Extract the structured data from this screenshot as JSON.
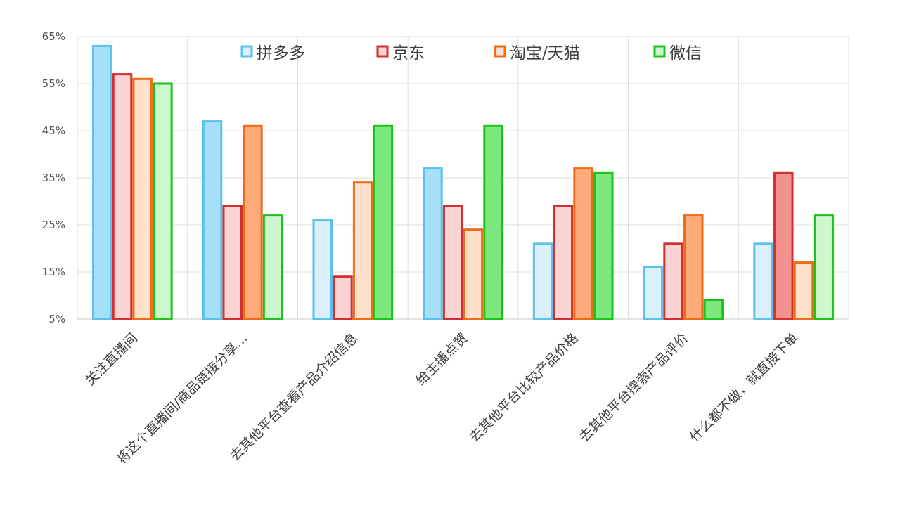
{
  "chart_data": {
    "type": "bar",
    "categories": [
      "关注直播间",
      "将这个直播间/商品链接分享…",
      "去其他平台查看产品介绍信息",
      "给主播点赞",
      "去其他平台比较产品价格",
      "去其他平台搜索产品评价",
      "什么都不做，就直接下单"
    ],
    "series": [
      {
        "name": "拼多多",
        "color": "#5bc0eb",
        "values": [
          63,
          47,
          26,
          37,
          21,
          16,
          21
        ]
      },
      {
        "name": "京东",
        "color": "#d32f2f",
        "values": [
          57,
          29,
          14,
          29,
          29,
          21,
          36
        ]
      },
      {
        "name": "淘宝/天猫",
        "color": "#ef6c13",
        "values": [
          56,
          46,
          34,
          24,
          37,
          27,
          17
        ]
      },
      {
        "name": "微信",
        "color": "#1dc31d",
        "values": [
          55,
          27,
          46,
          46,
          36,
          9,
          27
        ]
      }
    ],
    "fill_levels": [
      [
        2,
        2,
        1,
        2,
        1,
        1,
        1
      ],
      [
        1,
        1,
        1,
        1,
        1,
        1,
        2
      ],
      [
        1,
        2,
        1,
        1,
        2,
        2,
        1
      ],
      [
        1,
        1,
        2,
        2,
        2,
        2,
        1
      ]
    ],
    "fill_palette": {
      "拼多多": [
        "#daf1fb",
        "#a6e0f8"
      ],
      "京东": [
        "#fad4d4",
        "#f39191"
      ],
      "淘宝/天猫": [
        "#fee0cc",
        "#feab7c"
      ],
      "微信": [
        "#cdf7cd",
        "#7de87d"
      ]
    },
    "yticks": [
      "5%",
      "15%",
      "25%",
      "35%",
      "45%",
      "55%",
      "65%"
    ],
    "ylim": [
      5,
      65
    ],
    "grid": true,
    "legend_position": "top"
  }
}
